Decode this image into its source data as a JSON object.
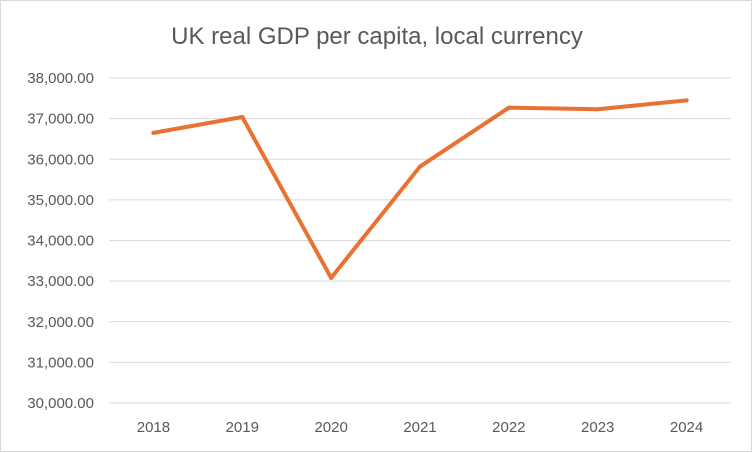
{
  "chart_data": {
    "type": "line",
    "title": "UK real GDP per capita, local currency",
    "xlabel": "",
    "ylabel": "",
    "categories": [
      "2018",
      "2019",
      "2020",
      "2021",
      "2022",
      "2023",
      "2024"
    ],
    "series": [
      {
        "name": "UK real GDP per capita",
        "values": [
          36650,
          37040,
          33080,
          35820,
          37270,
          37230,
          37450
        ],
        "color": "#E97132"
      }
    ],
    "ylim": [
      30000,
      38000
    ],
    "y_ticks": [
      "30,000.00",
      "31,000.00",
      "32,000.00",
      "33,000.00",
      "34,000.00",
      "35,000.00",
      "36,000.00",
      "37,000.00",
      "38,000.00"
    ],
    "grid": true,
    "legend": "none"
  }
}
